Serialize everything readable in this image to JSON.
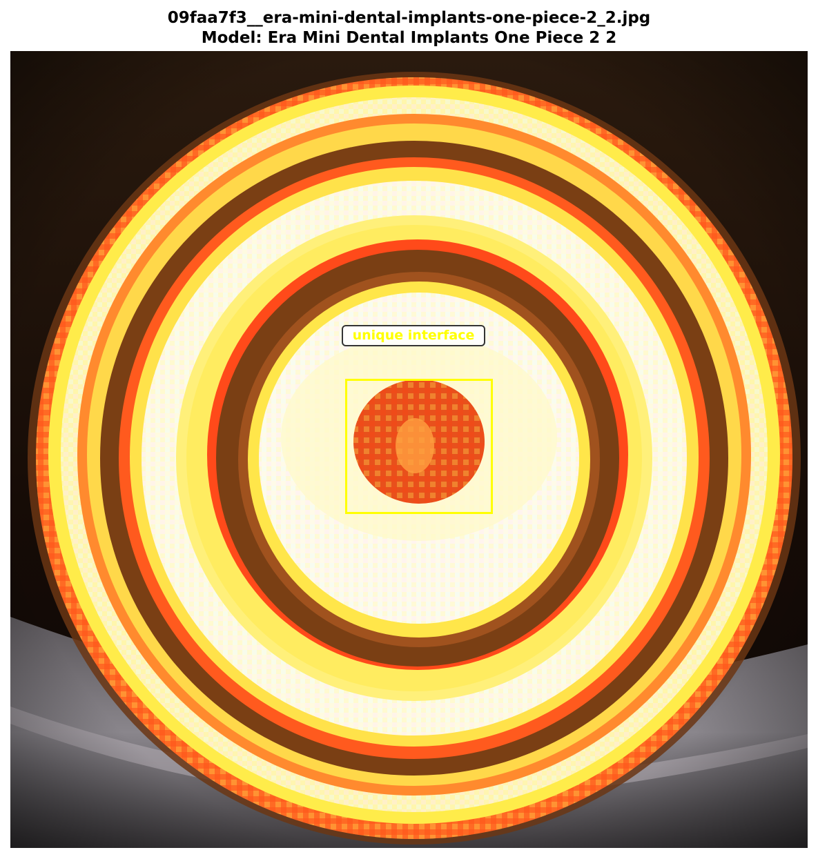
{
  "header": {
    "filename": "09faa7f3__era-mini-dental-implants-one-piece-2_2.jpg",
    "model": "Model: Era Mini Dental Implants One Piece 2 2"
  },
  "annotation": {
    "label": "unique interface",
    "color": "#ffff00"
  },
  "palette": {
    "background": "#ffffff",
    "dark_edge": "#1a0f08",
    "ring_orange": "#ff5a1e",
    "ring_brown": "#7a3f14",
    "ring_yellow": "#fff25a",
    "ring_cream": "#fffbe0",
    "grey_surface": "#6e6a6e"
  }
}
